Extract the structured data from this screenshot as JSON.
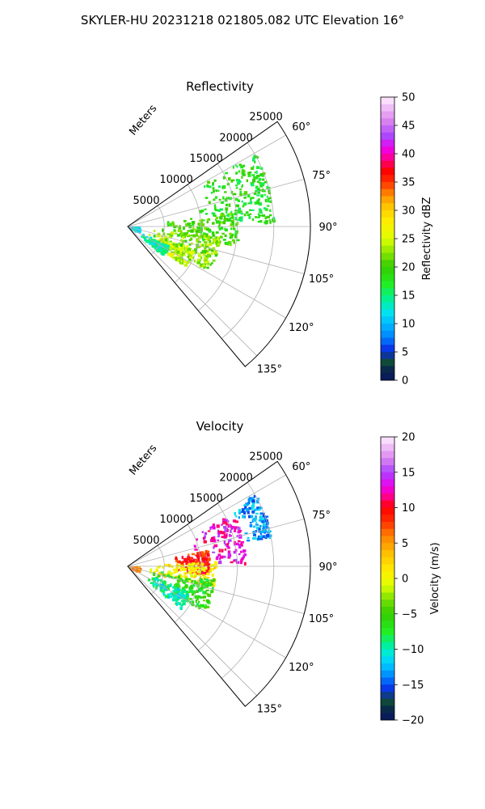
{
  "figure_title": "SKYLER-HU  20231218  021805.082 UTC Elevation 16°",
  "chart_data": [
    {
      "type": "heatmap",
      "subtype": "polar-sector",
      "title": "Reflectivity",
      "radial_axis_label": "Meters",
      "radial_range": [
        0,
        25000
      ],
      "radial_ticks": [
        "5000",
        "10000",
        "15000",
        "20000",
        "25000"
      ],
      "radial_tick_values": [
        5000,
        10000,
        15000,
        20000,
        25000
      ],
      "angle_range": [
        55,
        140
      ],
      "angle_ticks": [
        "60°",
        "75°",
        "90°",
        "105°",
        "120°",
        "135°"
      ],
      "angle_tick_values": [
        60,
        75,
        90,
        105,
        120,
        135
      ],
      "grid": true,
      "colorbar": {
        "label": "Reflectivity dBZ",
        "range": [
          0,
          50
        ],
        "ticks": [
          "0",
          "5",
          "10",
          "15",
          "20",
          "25",
          "30",
          "35",
          "40",
          "45",
          "50"
        ],
        "tick_values": [
          0,
          5,
          10,
          15,
          20,
          25,
          30,
          35,
          40,
          45,
          50
        ],
        "stops": [
          {
            "v": 0,
            "c": "#0a1560"
          },
          {
            "v": 2,
            "c": "#0a2a4a"
          },
          {
            "v": 3.5,
            "c": "#115533"
          },
          {
            "v": 5,
            "c": "#0a20e0"
          },
          {
            "v": 7.5,
            "c": "#0080ff"
          },
          {
            "v": 10,
            "c": "#00bbff"
          },
          {
            "v": 12,
            "c": "#00e5ee"
          },
          {
            "v": 14,
            "c": "#00f0a0"
          },
          {
            "v": 17,
            "c": "#22ee22"
          },
          {
            "v": 20,
            "c": "#33cc00"
          },
          {
            "v": 22,
            "c": "#77e000"
          },
          {
            "v": 25,
            "c": "#e0ff00"
          },
          {
            "v": 28,
            "c": "#ffee00"
          },
          {
            "v": 31,
            "c": "#ffc000"
          },
          {
            "v": 33,
            "c": "#ff8000"
          },
          {
            "v": 35,
            "c": "#ff3000"
          },
          {
            "v": 37,
            "c": "#ff0000"
          },
          {
            "v": 39,
            "c": "#ff0088"
          },
          {
            "v": 41,
            "c": "#ee00ee"
          },
          {
            "v": 43,
            "c": "#aa44ff"
          },
          {
            "v": 46,
            "c": "#dd88ee"
          },
          {
            "v": 50,
            "c": "#ffeeff"
          }
        ]
      },
      "echo_regions": [
        {
          "a0": 60,
          "a1": 88,
          "r0": 9000,
          "r1": 20000,
          "value": 18
        },
        {
          "a0": 82,
          "a1": 100,
          "r0": 4000,
          "r1": 15000,
          "value": 20
        },
        {
          "a0": 96,
          "a1": 118,
          "r0": 2500,
          "r1": 12500,
          "value": 22
        },
        {
          "a0": 108,
          "a1": 125,
          "r0": 3000,
          "r1": 9500,
          "value": 24
        },
        {
          "a0": 115,
          "a1": 128,
          "r0": 2000,
          "r1": 6000,
          "value": 14
        },
        {
          "a0": 88,
          "a1": 110,
          "r0": 0,
          "r1": 1500,
          "value": 12
        }
      ]
    },
    {
      "type": "heatmap",
      "subtype": "polar-sector",
      "title": "Velocity",
      "radial_axis_label": "Meters",
      "radial_range": [
        0,
        25000
      ],
      "radial_ticks": [
        "5000",
        "10000",
        "15000",
        "20000",
        "25000"
      ],
      "radial_tick_values": [
        5000,
        10000,
        15000,
        20000,
        25000
      ],
      "angle_range": [
        55,
        140
      ],
      "angle_ticks": [
        "60°",
        "75°",
        "90°",
        "105°",
        "120°",
        "135°"
      ],
      "angle_tick_values": [
        60,
        75,
        90,
        105,
        120,
        135
      ],
      "grid": true,
      "colorbar": {
        "label": "Velocity (m/s)",
        "range": [
          -20,
          20
        ],
        "ticks": [
          "−20",
          "−15",
          "−10",
          "−5",
          "0",
          "5",
          "10",
          "15",
          "20"
        ],
        "tick_values": [
          -20,
          -15,
          -10,
          -5,
          0,
          5,
          10,
          15,
          20
        ],
        "stops": [
          {
            "v": -20,
            "c": "#0a1560"
          },
          {
            "v": -18.5,
            "c": "#0a2a4a"
          },
          {
            "v": -17,
            "c": "#115533"
          },
          {
            "v": -16,
            "c": "#0a20e0"
          },
          {
            "v": -14,
            "c": "#0080ff"
          },
          {
            "v": -12.5,
            "c": "#00bbff"
          },
          {
            "v": -11,
            "c": "#00e5ee"
          },
          {
            "v": -9.5,
            "c": "#00f0a0"
          },
          {
            "v": -7.5,
            "c": "#22ee22"
          },
          {
            "v": -5,
            "c": "#33cc00"
          },
          {
            "v": -3,
            "c": "#77e000"
          },
          {
            "v": -1,
            "c": "#e0ff00"
          },
          {
            "v": 1,
            "c": "#ffee00"
          },
          {
            "v": 3.5,
            "c": "#ffc000"
          },
          {
            "v": 6,
            "c": "#ff8000"
          },
          {
            "v": 8,
            "c": "#ff3000"
          },
          {
            "v": 10,
            "c": "#ff0000"
          },
          {
            "v": 11.5,
            "c": "#ff0088"
          },
          {
            "v": 13,
            "c": "#ee00ee"
          },
          {
            "v": 15,
            "c": "#aa44ff"
          },
          {
            "v": 17,
            "c": "#dd88ee"
          },
          {
            "v": 20,
            "c": "#ffeeff"
          }
        ]
      },
      "echo_regions": [
        {
          "a0": 60,
          "a1": 78,
          "r0": 16000,
          "r1": 20000,
          "value": -13
        },
        {
          "a0": 63,
          "a1": 88,
          "r0": 9000,
          "r1": 16000,
          "value": 13
        },
        {
          "a0": 78,
          "a1": 95,
          "r0": 6000,
          "r1": 11000,
          "value": 9
        },
        {
          "a0": 86,
          "a1": 104,
          "r0": 2000,
          "r1": 12000,
          "value": 1
        },
        {
          "a0": 98,
          "a1": 120,
          "r0": 3000,
          "r1": 12000,
          "value": -6
        },
        {
          "a0": 112,
          "a1": 128,
          "r0": 3000,
          "r1": 9000,
          "value": -10
        },
        {
          "a0": 88,
          "a1": 110,
          "r0": 0,
          "r1": 1500,
          "value": 6
        }
      ]
    }
  ]
}
